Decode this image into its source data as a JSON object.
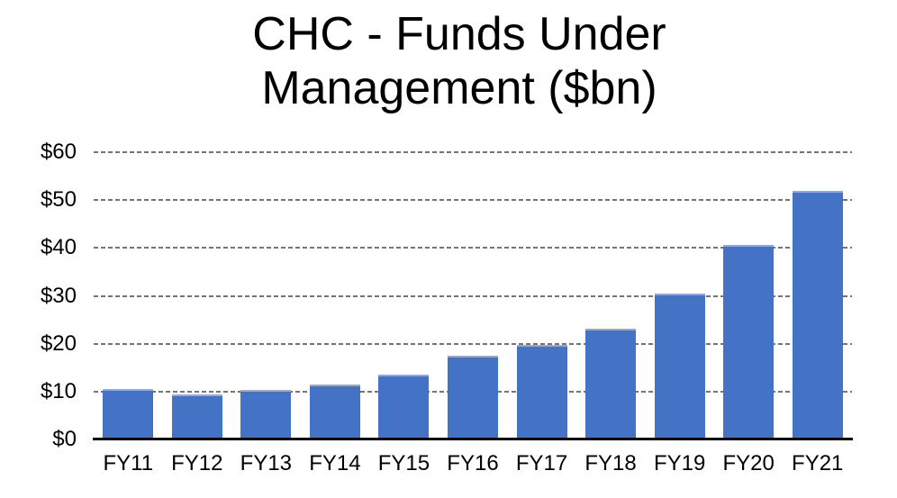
{
  "chart_data": {
    "type": "bar",
    "title": "CHC - Funds Under Management ($bn)",
    "title_lines": [
      "CHC - Funds Under",
      "Management ($bn)"
    ],
    "categories": [
      "FY11",
      "FY12",
      "FY13",
      "FY14",
      "FY15",
      "FY16",
      "FY17",
      "FY18",
      "FY19",
      "FY20",
      "FY21"
    ],
    "values": [
      10.6,
      9.4,
      10.3,
      11.4,
      13.6,
      17.4,
      19.8,
      23.2,
      30.4,
      40.6,
      52.0
    ],
    "xlabel": "",
    "ylabel": "",
    "ylim": [
      0,
      60
    ],
    "ytick_step": 10,
    "ytick_prefix": "$",
    "ytick_labels": [
      "$0",
      "$10",
      "$20",
      "$30",
      "$40",
      "$50",
      "$60"
    ],
    "grid": "horizontal-dashed",
    "legend": "none",
    "colors": {
      "bar": "#4472C4",
      "bar_top_edge": "#8FAADC",
      "gridline": "#757575",
      "axis_line": "#000000",
      "text": "#000000",
      "background": "#FFFFFF"
    }
  }
}
